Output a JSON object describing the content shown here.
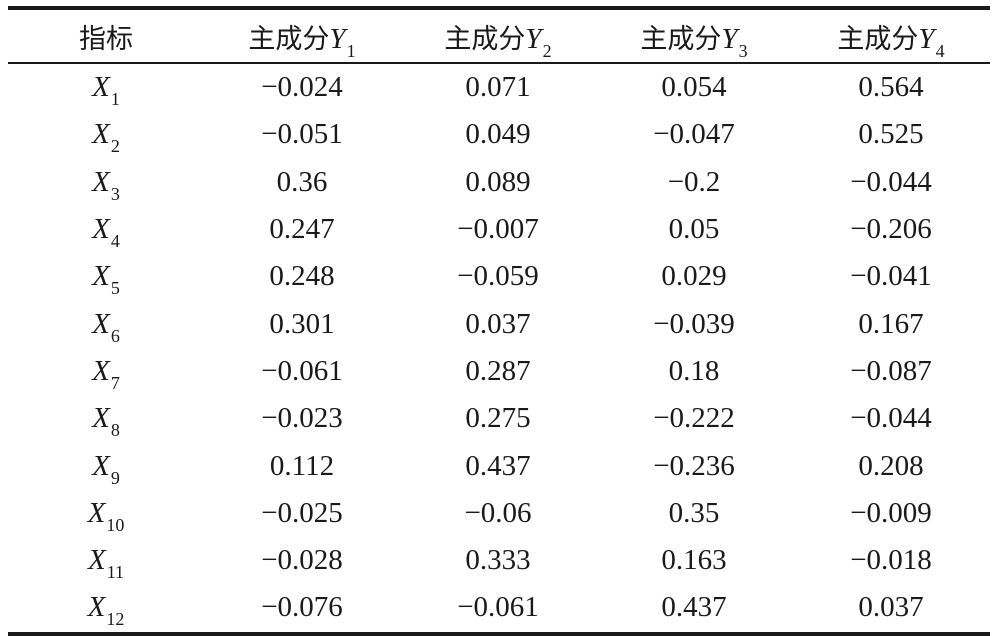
{
  "table": {
    "header": {
      "indicator": "指标",
      "component_prefix": "主成分",
      "components": [
        {
          "var": "Y",
          "sub": "1"
        },
        {
          "var": "Y",
          "sub": "2"
        },
        {
          "var": "Y",
          "sub": "3"
        },
        {
          "var": "Y",
          "sub": "4"
        }
      ]
    },
    "rows": [
      {
        "var": "X",
        "sub": "1",
        "values": [
          "−0.024",
          "0.071",
          "0.054",
          "0.564"
        ]
      },
      {
        "var": "X",
        "sub": "2",
        "values": [
          "−0.051",
          "0.049",
          "−0.047",
          "0.525"
        ]
      },
      {
        "var": "X",
        "sub": "3",
        "values": [
          "0.36",
          "0.089",
          "−0.2",
          "−0.044"
        ]
      },
      {
        "var": "X",
        "sub": "4",
        "values": [
          "0.247",
          "−0.007",
          "0.05",
          "−0.206"
        ]
      },
      {
        "var": "X",
        "sub": "5",
        "values": [
          "0.248",
          "−0.059",
          "0.029",
          "−0.041"
        ]
      },
      {
        "var": "X",
        "sub": "6",
        "values": [
          "0.301",
          "0.037",
          "−0.039",
          "0.167"
        ]
      },
      {
        "var": "X",
        "sub": "7",
        "values": [
          "−0.061",
          "0.287",
          "0.18",
          "−0.087"
        ]
      },
      {
        "var": "X",
        "sub": "8",
        "values": [
          "−0.023",
          "0.275",
          "−0.222",
          "−0.044"
        ]
      },
      {
        "var": "X",
        "sub": "9",
        "values": [
          "0.112",
          "0.437",
          "−0.236",
          "0.208"
        ]
      },
      {
        "var": "X",
        "sub": "10",
        "values": [
          "−0.025",
          "−0.06",
          "0.35",
          "−0.009"
        ]
      },
      {
        "var": "X",
        "sub": "11",
        "values": [
          "−0.028",
          "0.333",
          "0.163",
          "−0.018"
        ]
      },
      {
        "var": "X",
        "sub": "12",
        "values": [
          "−0.076",
          "−0.061",
          "0.437",
          "0.037"
        ]
      }
    ]
  }
}
